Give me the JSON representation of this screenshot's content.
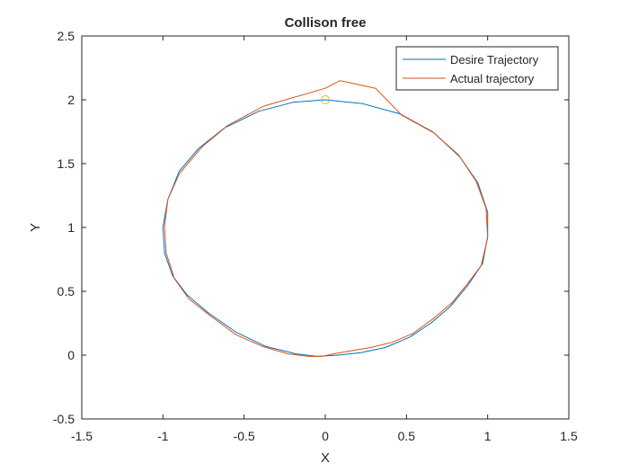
{
  "chart_data": {
    "type": "line",
    "title": "Collison free",
    "xlabel": "X",
    "ylabel": "Y",
    "xlim": [
      -1.5,
      1.5
    ],
    "ylim": [
      -0.5,
      2.5
    ],
    "xticks": [
      "-1.5",
      "-1",
      "-0.5",
      "0",
      "0.5",
      "1",
      "1.5"
    ],
    "yticks": [
      "-0.5",
      "0",
      "0.5",
      "1",
      "1.5",
      "2",
      "2.5"
    ],
    "grid": false,
    "legend_position": "top-right",
    "series": [
      {
        "name": "Desire Trajectory",
        "color": "#0072BD",
        "points": [
          [
            0,
            2
          ],
          [
            0.23,
            1.97
          ],
          [
            0.46,
            1.89
          ],
          [
            0.66,
            1.75
          ],
          [
            0.82,
            1.57
          ],
          [
            0.94,
            1.35
          ],
          [
            1.0,
            1.12
          ],
          [
            1.0,
            0.93
          ],
          [
            0.97,
            0.72
          ],
          [
            0.88,
            0.55
          ],
          [
            0.77,
            0.38
          ],
          [
            0.65,
            0.25
          ],
          [
            0.52,
            0.14
          ],
          [
            0.37,
            0.06
          ],
          [
            0.22,
            0.02
          ],
          [
            0.08,
            0.0
          ],
          [
            -0.05,
            -0.01
          ],
          [
            -0.18,
            0.01
          ],
          [
            -0.37,
            0.07
          ],
          [
            -0.55,
            0.18
          ],
          [
            -0.72,
            0.33
          ],
          [
            -0.85,
            0.47
          ],
          [
            -0.94,
            0.62
          ],
          [
            -0.99,
            0.8
          ],
          [
            -1.0,
            1.0
          ],
          [
            -0.97,
            1.22
          ],
          [
            -0.9,
            1.44
          ],
          [
            -0.78,
            1.62
          ],
          [
            -0.62,
            1.78
          ],
          [
            -0.41,
            1.91
          ],
          [
            -0.2,
            1.98
          ],
          [
            0,
            2
          ]
        ]
      },
      {
        "name": "Actual trajectory",
        "color": "#D95319",
        "points": [
          [
            0,
            2.09
          ],
          [
            0.09,
            2.15
          ],
          [
            0.31,
            2.09
          ],
          [
            0.47,
            1.88
          ],
          [
            0.67,
            1.74
          ],
          [
            0.83,
            1.55
          ],
          [
            0.93,
            1.36
          ],
          [
            0.99,
            1.15
          ],
          [
            1.0,
            0.92
          ],
          [
            0.96,
            0.7
          ],
          [
            0.87,
            0.55
          ],
          [
            0.78,
            0.41
          ],
          [
            0.67,
            0.29
          ],
          [
            0.54,
            0.17
          ],
          [
            0.41,
            0.1
          ],
          [
            0.28,
            0.06
          ],
          [
            0.14,
            0.03
          ],
          [
            0.05,
            0.01
          ],
          [
            -0.02,
            -0.01
          ],
          [
            -0.1,
            -0.01
          ],
          [
            -0.23,
            0.01
          ],
          [
            -0.39,
            0.07
          ],
          [
            -0.55,
            0.16
          ],
          [
            -0.71,
            0.31
          ],
          [
            -0.84,
            0.44
          ],
          [
            -0.93,
            0.6
          ],
          [
            -0.98,
            0.8
          ],
          [
            -0.99,
            1.01
          ],
          [
            -0.97,
            1.22
          ],
          [
            -0.9,
            1.42
          ],
          [
            -0.76,
            1.63
          ],
          [
            -0.6,
            1.8
          ],
          [
            -0.38,
            1.95
          ],
          [
            0,
            2.09
          ]
        ]
      }
    ],
    "marker": {
      "x": 0,
      "y": 2,
      "shape": "circle",
      "color": "#EDB120"
    }
  }
}
